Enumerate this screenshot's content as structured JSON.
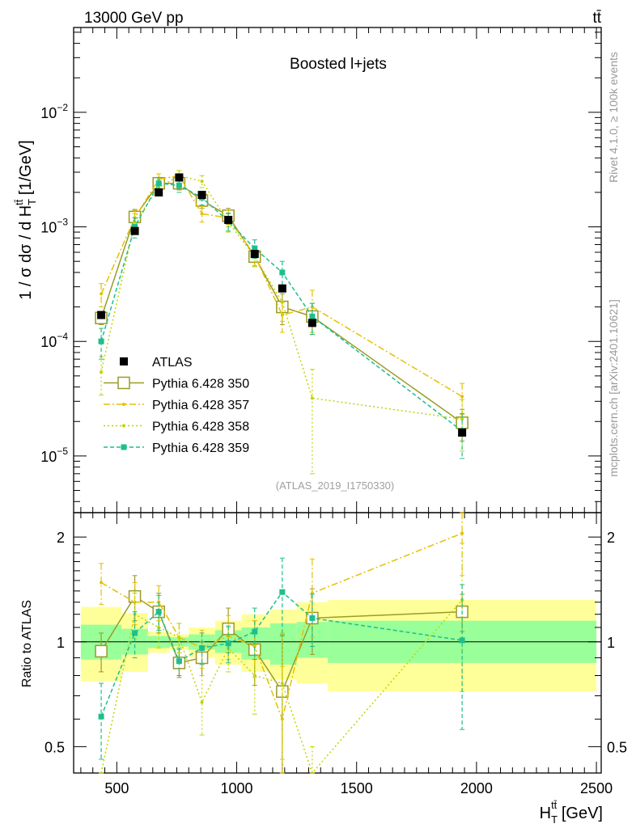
{
  "header": {
    "left_label": "13000 GeV pp",
    "right_label": "tt̄",
    "plot_title": "Boosted l+jets",
    "analysis_id": "(ATLAS_2019_I1750330)",
    "side_rivet": "Rivet 4.1.0, ≥ 100k events",
    "side_mcplots": "mcplots.cern.ch [arXiv:2401.10621]"
  },
  "chart_data": {
    "type": "scatter",
    "title": "Boosted l+jets",
    "x_axis": {
      "label_prefix": "H",
      "label_sub": "T",
      "label_sup": "tt̄",
      "label_unit": " [GeV]",
      "range": [
        320,
        2520
      ],
      "ticks": [
        500,
        1000,
        1500,
        2000,
        2500
      ],
      "tick_labels": [
        "500",
        "1000",
        "1500",
        "2000",
        "2500"
      ]
    },
    "main_y_axis": {
      "label_text": "1 / σ dσ / d H",
      "label_sub": "T",
      "label_sup": "tt̄",
      "label_unit": " [1/GeV]",
      "scale": "log",
      "range": [
        3.2e-06,
        0.055
      ],
      "tick_exponents": [
        -5,
        -4,
        -3,
        -2
      ],
      "tick_base": "10"
    },
    "ratio_y_axis": {
      "label": "Ratio to ATLAS",
      "scale": "log",
      "range": [
        0.42,
        2.35
      ],
      "ticks": [
        0.5,
        1,
        2
      ],
      "tick_labels": [
        "0.5",
        "1",
        "2"
      ]
    },
    "bins": [
      350,
      520,
      630,
      720,
      800,
      910,
      1020,
      1140,
      1250,
      1380,
      2500
    ],
    "legend": [
      {
        "name": "ATLAS",
        "style": "data"
      },
      {
        "name": "Pythia 6.428 350",
        "style": "solid-open-square"
      },
      {
        "name": "Pythia 6.428 357",
        "style": "dashdot"
      },
      {
        "name": "Pythia 6.428 358",
        "style": "dotted"
      },
      {
        "name": "Pythia 6.428 359",
        "style": "dashed-filled-square"
      }
    ],
    "data": {
      "name": "ATLAS",
      "x": [
        435,
        575,
        675,
        760,
        855,
        965,
        1075,
        1190,
        1315,
        1940
      ],
      "y": [
        0.00017,
        0.00092,
        0.002,
        0.0027,
        0.0019,
        0.00115,
        0.00058,
        0.00029,
        0.000145,
        1.6e-05
      ]
    },
    "series": [
      {
        "name": "Pythia 6.428 350",
        "color": "#9a9a28",
        "dash": "",
        "marker": "open-square",
        "x": [
          435,
          575,
          675,
          760,
          855,
          965,
          1075,
          1190,
          1315,
          1940
        ],
        "y": [
          0.00016,
          0.00122,
          0.0024,
          0.0024,
          0.0017,
          0.00125,
          0.00055,
          0.0002,
          0.000165,
          1.95e-05
        ],
        "err": [
          2e-05,
          0.0002,
          0.0003,
          0.0003,
          0.00025,
          0.0002,
          0.0001,
          6e-05,
          5e-05,
          6e-06
        ],
        "ratio": [
          0.94,
          1.35,
          1.22,
          0.87,
          0.9,
          1.09,
          0.95,
          0.72,
          1.17,
          1.22
        ],
        "ratio_err": [
          0.12,
          0.2,
          0.16,
          0.08,
          0.1,
          0.16,
          0.2,
          0.33,
          0.25,
          0.15
        ]
      },
      {
        "name": "Pythia 6.428 357",
        "color": "#e6c000",
        "dash": "8,3,2,3",
        "marker": "small-dot",
        "x": [
          435,
          575,
          675,
          760,
          855,
          965,
          1075,
          1190,
          1315,
          1940
        ],
        "y": [
          0.00026,
          0.0012,
          0.0026,
          0.0028,
          0.0013,
          0.0012,
          0.00056,
          0.00017,
          0.0002,
          3.3e-05
        ],
        "err": [
          6e-05,
          0.0002,
          0.0003,
          0.0003,
          0.0002,
          0.0002,
          0.0001,
          5e-05,
          8e-05,
          1e-05
        ],
        "ratio": [
          1.48,
          1.3,
          1.3,
          1.03,
          0.96,
          1.04,
          0.97,
          0.6,
          1.38,
          2.05
        ],
        "ratio_err": [
          0.2,
          0.18,
          0.15,
          0.1,
          0.12,
          0.15,
          0.18,
          0.25,
          0.35,
          0.5
        ]
      },
      {
        "name": "Pythia 6.428 358",
        "color": "#c2d400",
        "dash": "2,3",
        "marker": "small-dot",
        "x": [
          435,
          575,
          675,
          760,
          855,
          965,
          1075,
          1190,
          1315,
          1940
        ],
        "y": [
          5.4e-05,
          0.0011,
          0.0022,
          0.0028,
          0.0025,
          0.0011,
          0.00055,
          0.00022,
          3.2e-05,
          2.1e-05
        ],
        "err": [
          2e-05,
          0.0002,
          0.0003,
          0.0003,
          0.0003,
          0.0002,
          0.0001,
          7e-05,
          2.5e-05,
          1e-05
        ],
        "ratio": [
          0.32,
          1.2,
          1.1,
          1.03,
          0.67,
          0.96,
          0.8,
          0.76,
          0.2,
          1.32
        ],
        "ratio_err": [
          0.1,
          0.18,
          0.14,
          0.1,
          0.13,
          0.14,
          0.18,
          0.3,
          0.3,
          0.6
        ]
      },
      {
        "name": "Pythia 6.428 359",
        "color": "#1dbf8c",
        "dash": "5,3",
        "marker": "filled-square",
        "x": [
          435,
          575,
          675,
          760,
          855,
          965,
          1075,
          1190,
          1315,
          1940
        ],
        "y": [
          0.0001,
          0.001,
          0.0024,
          0.0023,
          0.0018,
          0.00112,
          0.00065,
          0.0004,
          0.000165,
          1.65e-05
        ],
        "err": [
          3e-05,
          0.0002,
          0.0003,
          0.0003,
          0.00025,
          0.0002,
          0.00012,
          0.0001,
          5e-05,
          7e-06
        ],
        "ratio": [
          0.61,
          1.06,
          1.22,
          0.88,
          0.96,
          0.99,
          1.07,
          1.39,
          1.17,
          1.01
        ],
        "ratio_err": [
          0.15,
          0.16,
          0.14,
          0.08,
          0.1,
          0.12,
          0.18,
          0.35,
          0.2,
          0.45
        ]
      }
    ],
    "ratio_bands": {
      "inner_low": [
        0.89,
        0.92,
        0.96,
        0.97,
        0.95,
        0.93,
        0.89,
        0.86,
        0.9,
        0.87
      ],
      "inner_high": [
        1.12,
        1.09,
        1.04,
        1.03,
        1.05,
        1.08,
        1.1,
        1.13,
        1.14,
        1.15
      ],
      "outer_low": [
        0.77,
        0.82,
        0.93,
        0.95,
        0.9,
        0.86,
        0.82,
        0.78,
        0.76,
        0.72
      ],
      "outer_high": [
        1.26,
        1.21,
        1.07,
        1.05,
        1.1,
        1.15,
        1.2,
        1.24,
        1.3,
        1.32
      ]
    }
  },
  "colors": {
    "inner_band": "#99ff99",
    "outer_band": "#ffff99",
    "data": "#000000",
    "side_text": "#999999"
  }
}
